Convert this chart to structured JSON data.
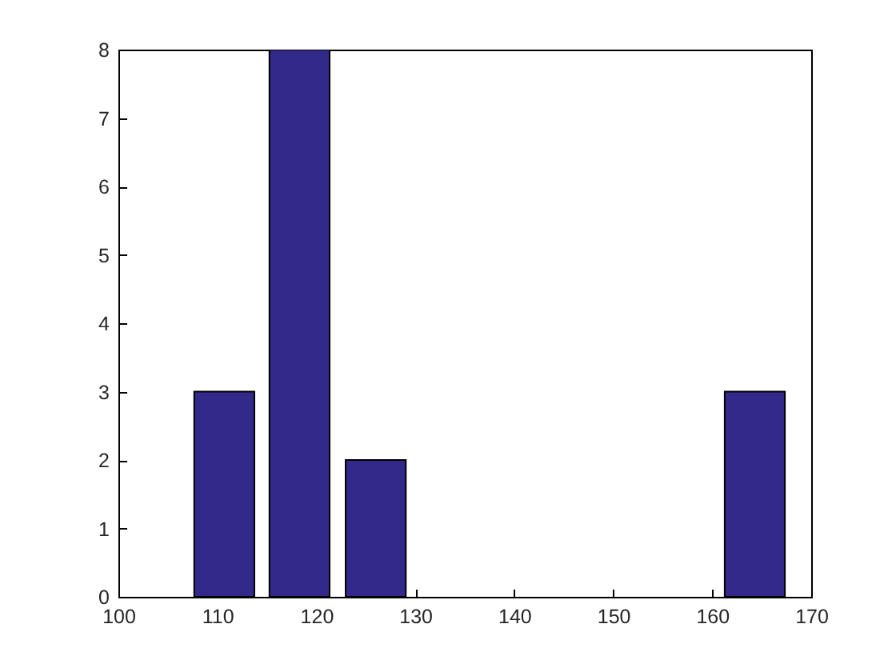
{
  "chart_data": {
    "type": "bar",
    "x": [
      110.7,
      118.3,
      126.0,
      164.3
    ],
    "values": [
      3,
      8,
      2,
      3
    ],
    "color": "#33298a",
    "xlim": [
      100,
      170
    ],
    "xticks": [
      100,
      110,
      120,
      130,
      140,
      150,
      160,
      170
    ],
    "ylim": [
      0,
      8
    ],
    "yticks": [
      0,
      1,
      2,
      3,
      4,
      5,
      6,
      7,
      8
    ],
    "grid": false
  }
}
